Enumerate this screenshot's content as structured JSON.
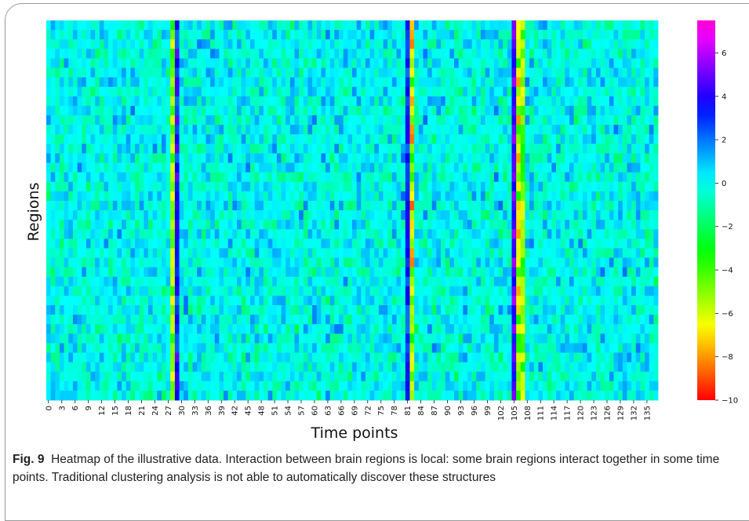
{
  "chart_data": {
    "type": "heatmap",
    "xlabel": "Time points",
    "ylabel": "Regions",
    "x_tick_labels": [
      "0",
      "3",
      "6",
      "9",
      "12",
      "15",
      "18",
      "21",
      "24",
      "27",
      "30",
      "33",
      "36",
      "39",
      "42",
      "45",
      "48",
      "51",
      "54",
      "57",
      "60",
      "63",
      "66",
      "69",
      "72",
      "75",
      "78",
      "81",
      "84",
      "87",
      "90",
      "93",
      "96",
      "99",
      "102",
      "105",
      "108",
      "111",
      "114",
      "117",
      "120",
      "123",
      "126",
      "129",
      "132",
      "135"
    ],
    "n_time_points": 138,
    "n_regions": 40,
    "colormap": "gist_rainbow",
    "colorbar_range": [
      -10,
      7.5
    ],
    "colorbar_ticks": [
      "6",
      "4",
      "2",
      "0",
      "−2",
      "−4",
      "−6",
      "−8",
      "−10"
    ],
    "colorbar_tick_values": [
      6,
      4,
      2,
      0,
      -2,
      -4,
      -6,
      -8,
      -10
    ],
    "background_value": 0,
    "strong_time_columns": [
      {
        "time": 28,
        "value_range": [
          -7,
          -3
        ]
      },
      {
        "time": 29,
        "value_range": [
          2,
          5
        ]
      },
      {
        "time": 82,
        "value_range": [
          -9,
          -3
        ]
      },
      {
        "time": 81,
        "value_range": [
          2,
          4
        ]
      },
      {
        "time": 106,
        "value_range": [
          -8,
          -3
        ]
      },
      {
        "time": 107,
        "value_range": [
          -7,
          -3
        ]
      },
      {
        "time": 105,
        "value_range": [
          3,
          6
        ]
      }
    ]
  },
  "caption": {
    "label": "Fig. 9",
    "text": "Heatmap of the illustrative data. Interaction between brain regions is local: some brain regions interact together in some time points. Traditional clustering analysis is not able to automatically discover these structures"
  }
}
